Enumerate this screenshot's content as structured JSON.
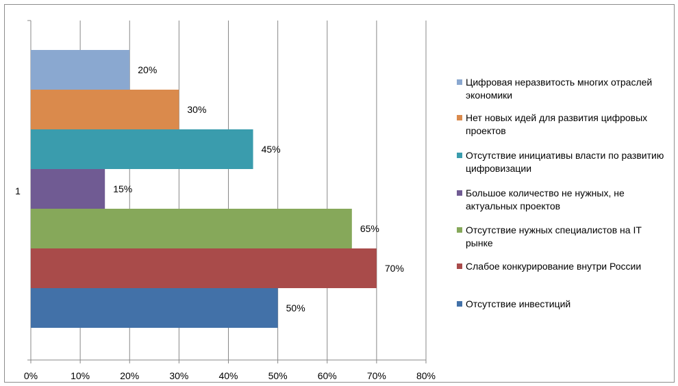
{
  "chart_data": {
    "type": "bar",
    "orientation": "horizontal",
    "category_label": "1",
    "xlim": [
      0,
      80
    ],
    "x_ticks": [
      "0%",
      "10%",
      "20%",
      "30%",
      "40%",
      "50%",
      "60%",
      "70%",
      "80%"
    ],
    "grid": "vertical",
    "legend_position": "right",
    "series": [
      {
        "name": "Цифровая неразвитость многих отраслей экономики",
        "value": 20,
        "label": "20%",
        "color": "#8aa8d0"
      },
      {
        "name": "Нет новых идей для развития цифровых проектов",
        "value": 30,
        "label": "30%",
        "color": "#da8a4c"
      },
      {
        "name": "Отсутствие инициативы власти по развитию цифровизации",
        "value": 45,
        "label": "45%",
        "color": "#3a9cad"
      },
      {
        "name": "Большое количество не нужных, не актуальных проектов",
        "value": 15,
        "label": "15%",
        "color": "#705b93"
      },
      {
        "name": "Отсутствие нужных специалистов на IT рынке",
        "value": 65,
        "label": "65%",
        "color": "#86a85a"
      },
      {
        "name": "Слабое конкурирование внутри России",
        "value": 70,
        "label": "70%",
        "color": "#a94b4a"
      },
      {
        "name": "Отсутствие инвестиций",
        "value": 50,
        "label": "50%",
        "color": "#4271a8"
      }
    ]
  }
}
